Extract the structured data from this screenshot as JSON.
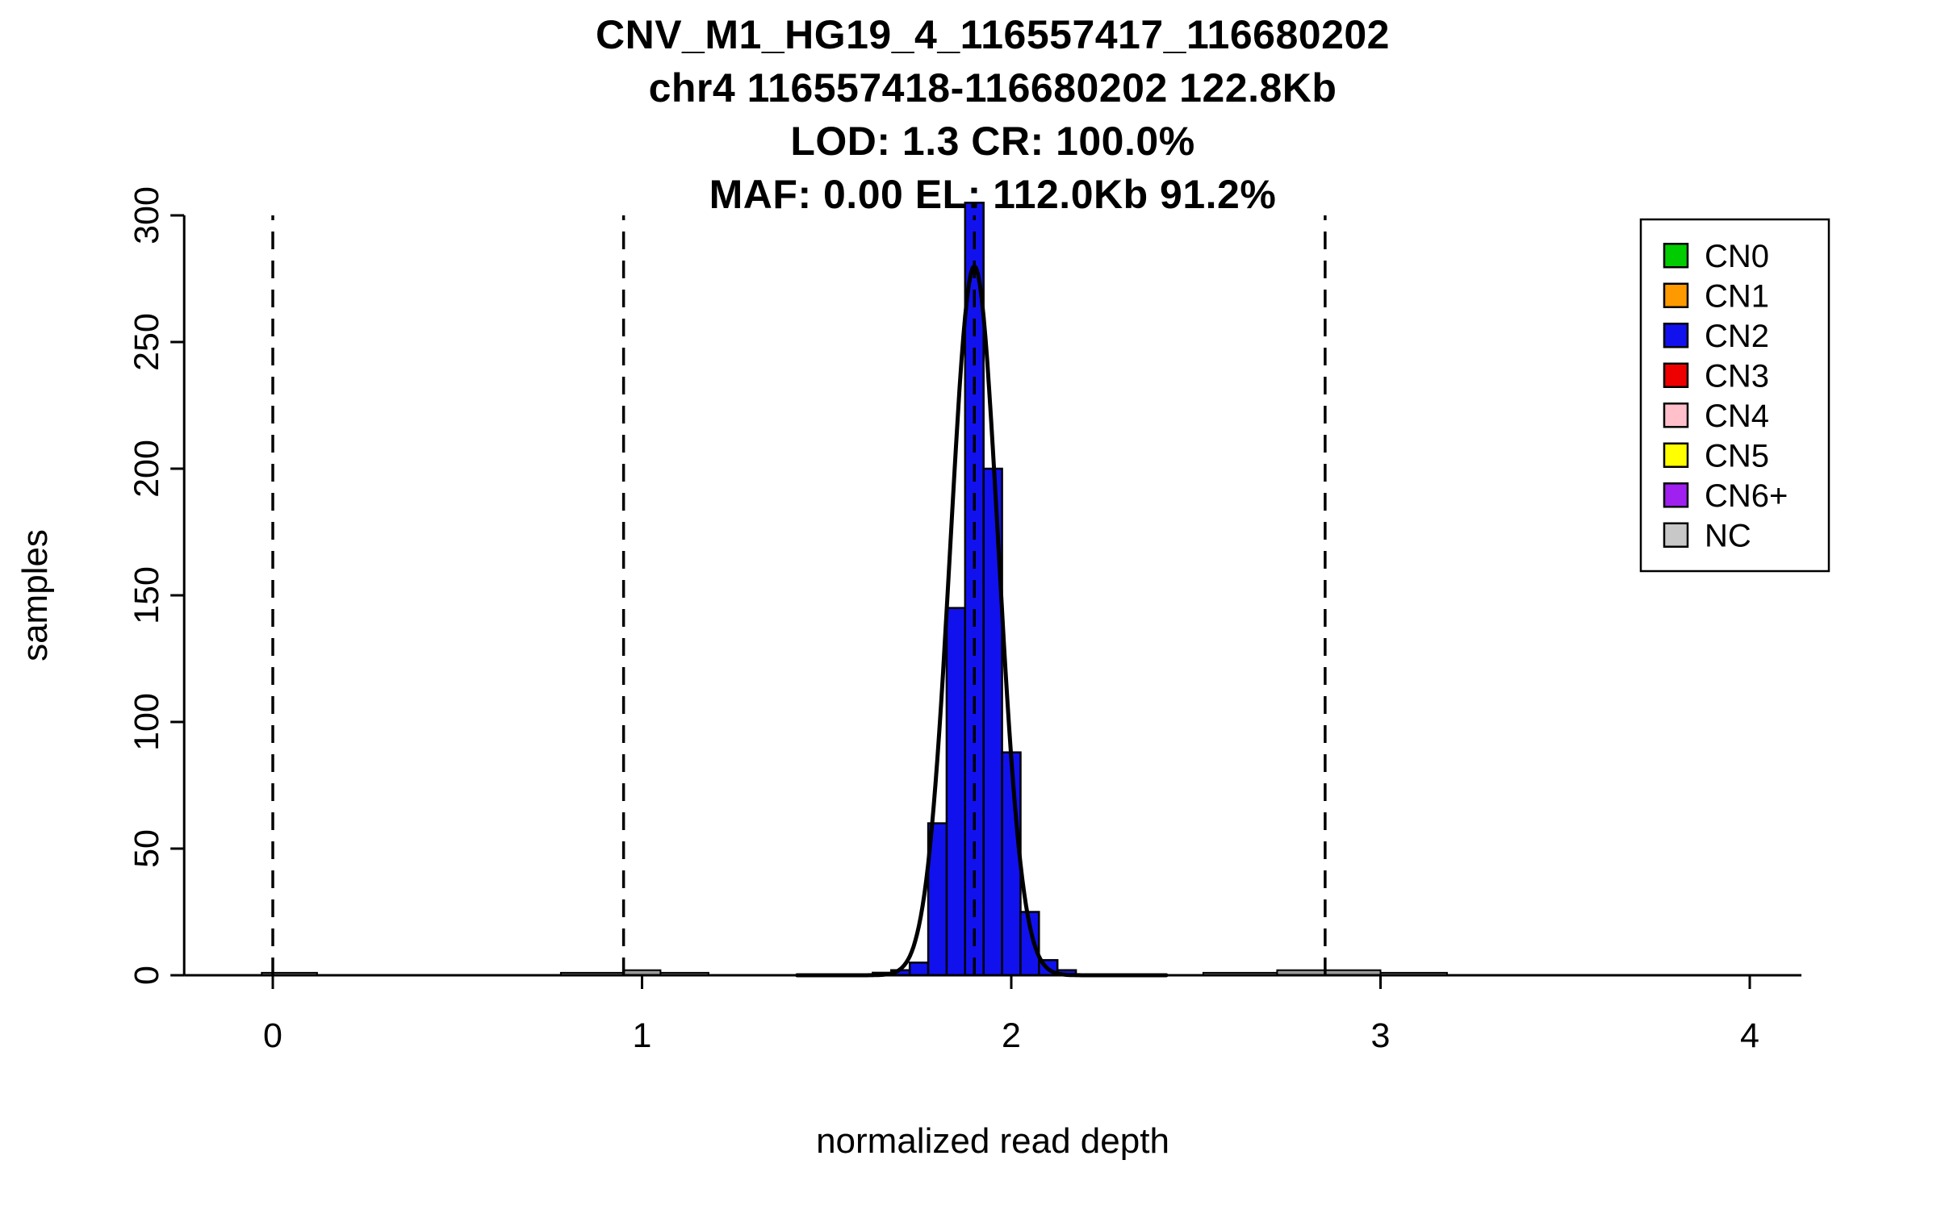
{
  "chart_data": {
    "type": "bar",
    "subtype": "histogram",
    "title_lines": [
      "CNV_M1_HG19_4_116557417_116680202",
      "chr4 116557418-116680202 122.8Kb",
      "LOD: 1.3 CR: 100.0%",
      "MAF: 0.00 EL: 112.0Kb 91.2%"
    ],
    "xlabel": "normalized read depth",
    "ylabel": "samples",
    "xlim": [
      -0.24,
      4.14
    ],
    "ylim": [
      0,
      300
    ],
    "x_ticks": [
      0,
      1,
      2,
      3,
      4
    ],
    "y_ticks": [
      0,
      50,
      100,
      150,
      200,
      250,
      300
    ],
    "grid": false,
    "main_bins": {
      "start": 1.625,
      "width": 0.05,
      "counts": [
        1,
        2,
        5,
        60,
        145,
        305,
        200,
        88,
        25,
        6,
        2
      ]
    },
    "minor_bins": [
      {
        "x0": -0.03,
        "x1": 0.12,
        "count": 1
      },
      {
        "x0": 0.78,
        "x1": 0.95,
        "count": 1
      },
      {
        "x0": 0.95,
        "x1": 1.05,
        "count": 2
      },
      {
        "x0": 1.05,
        "x1": 1.18,
        "count": 1
      },
      {
        "x0": 2.52,
        "x1": 2.72,
        "count": 1
      },
      {
        "x0": 2.72,
        "x1": 3.0,
        "count": 2
      },
      {
        "x0": 3.0,
        "x1": 3.18,
        "count": 1
      }
    ],
    "dashed_lines_x": [
      0,
      0.95,
      1.9,
      2.85
    ],
    "fit_curve": {
      "shape": "gaussian",
      "mean": 1.9,
      "sd": 0.065,
      "peak": 280,
      "x_from": 1.42,
      "x_to": 2.42
    },
    "colors": {
      "bar_fill": "#1111EE",
      "bar_stroke": "#000000",
      "minor_fill": "#999999",
      "curve": "#000000",
      "axis": "#000000"
    },
    "legend": {
      "position": "top-right",
      "entries": [
        {
          "label": "CN0",
          "color": "#00CC00"
        },
        {
          "label": "CN1",
          "color": "#FF9900"
        },
        {
          "label": "CN2",
          "color": "#1111EE"
        },
        {
          "label": "CN3",
          "color": "#EE0000"
        },
        {
          "label": "CN4",
          "color": "#FFC0CB"
        },
        {
          "label": "CN5",
          "color": "#FFFF00"
        },
        {
          "label": "CN6+",
          "color": "#A020F0"
        },
        {
          "label": "NC",
          "color": "#C8C8C8"
        }
      ]
    }
  }
}
